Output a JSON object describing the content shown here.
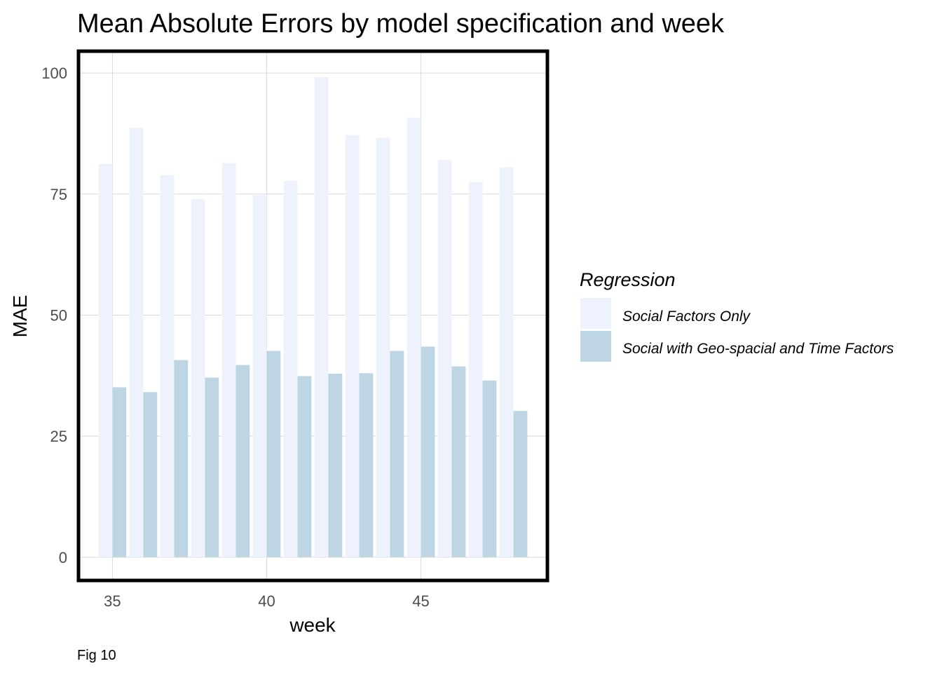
{
  "chart_data": {
    "type": "bar",
    "title": "Mean Absolute Errors by model specification and week",
    "xlabel": "week",
    "ylabel": "MAE",
    "caption": "Fig 10",
    "x": [
      35,
      36,
      37,
      38,
      39,
      40,
      41,
      42,
      43,
      44,
      45,
      46,
      47,
      48
    ],
    "xticks": [
      35,
      40,
      45
    ],
    "yticks": [
      0,
      25,
      50,
      75,
      100
    ],
    "xlim": [
      33.9,
      49.1
    ],
    "ylim": [
      -4.8,
      104.5
    ],
    "grid": true,
    "legend": {
      "title": "Regression",
      "position": "right"
    },
    "series": [
      {
        "name": "Social Factors Only",
        "color": "#eef2fd",
        "values": [
          81.2,
          88.7,
          78.9,
          74.0,
          81.4,
          74.8,
          77.7,
          99.1,
          87.2,
          86.6,
          90.7,
          82.0,
          77.5,
          80.5
        ]
      },
      {
        "name": "Social with Geo-spacial and Time Factors",
        "color": "#bed6e4",
        "values": [
          35.1,
          34.1,
          40.7,
          37.1,
          39.7,
          42.6,
          37.4,
          37.9,
          38.0,
          42.6,
          43.5,
          39.4,
          36.5,
          30.2
        ]
      }
    ]
  }
}
